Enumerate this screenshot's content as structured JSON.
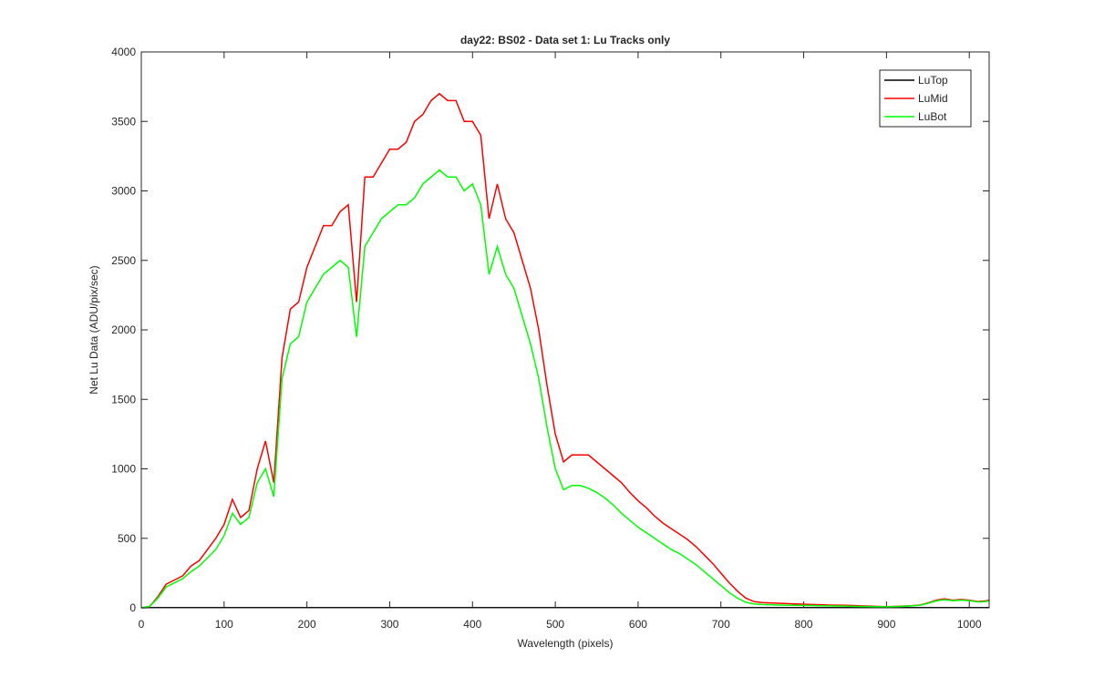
{
  "chart_data": {
    "type": "line",
    "title": "day22: BS02 - Data set 1: Lu Tracks only",
    "xlabel": "Wavelength (pixels)",
    "ylabel": "Net Lu Data (ADU/pix/sec)",
    "x": [
      0,
      10,
      20,
      30,
      40,
      50,
      60,
      70,
      80,
      90,
      100,
      110,
      120,
      130,
      140,
      150,
      160,
      170,
      180,
      190,
      200,
      210,
      220,
      230,
      240,
      250,
      260,
      270,
      280,
      290,
      300,
      310,
      320,
      330,
      340,
      350,
      360,
      370,
      380,
      390,
      400,
      410,
      420,
      430,
      440,
      450,
      460,
      470,
      480,
      490,
      500,
      510,
      520,
      530,
      540,
      550,
      560,
      570,
      580,
      590,
      600,
      610,
      620,
      630,
      640,
      650,
      660,
      670,
      680,
      690,
      700,
      710,
      720,
      730,
      740,
      750,
      760,
      770,
      780,
      790,
      800,
      810,
      820,
      830,
      840,
      850,
      860,
      870,
      880,
      890,
      900,
      910,
      920,
      930,
      940,
      950,
      960,
      970,
      980,
      990,
      1000,
      1010,
      1020,
      1024
    ],
    "series": [
      {
        "name": "LuTop",
        "color": "#000000",
        "values": [
          0,
          2,
          2,
          2,
          2,
          2,
          2,
          2,
          2,
          2,
          2,
          2,
          2,
          2,
          2,
          2,
          2,
          2,
          2,
          2,
          2,
          2,
          2,
          2,
          2,
          2,
          2,
          2,
          2,
          2,
          2,
          2,
          2,
          2,
          2,
          2,
          2,
          2,
          2,
          2,
          2,
          2,
          2,
          2,
          2,
          2,
          2,
          2,
          2,
          2,
          2,
          2,
          2,
          2,
          2,
          2,
          2,
          2,
          2,
          2,
          2,
          2,
          2,
          2,
          2,
          2,
          2,
          2,
          2,
          2,
          2,
          2,
          2,
          2,
          2,
          2,
          2,
          2,
          2,
          2,
          2,
          2,
          2,
          2,
          2,
          2,
          2,
          2,
          2,
          2,
          2,
          2,
          2,
          2,
          2,
          2,
          2,
          2,
          2,
          2,
          2,
          2,
          2,
          2
        ]
      },
      {
        "name": "LuMid",
        "color": "#ff0000",
        "values": [
          0,
          10,
          80,
          170,
          200,
          230,
          300,
          340,
          420,
          500,
          600,
          780,
          650,
          700,
          1000,
          1200,
          900,
          1800,
          2150,
          2200,
          2450,
          2600,
          2750,
          2750,
          2850,
          2900,
          2200,
          3100,
          3100,
          3200,
          3300,
          3300,
          3350,
          3500,
          3550,
          3650,
          3700,
          3650,
          3650,
          3500,
          3500,
          3400,
          2800,
          3050,
          2800,
          2700,
          2500,
          2300,
          2000,
          1600,
          1250,
          1050,
          1100,
          1100,
          1100,
          1050,
          1000,
          950,
          900,
          830,
          770,
          720,
          660,
          610,
          570,
          530,
          490,
          440,
          380,
          320,
          250,
          180,
          120,
          70,
          45,
          38,
          35,
          33,
          30,
          28,
          26,
          24,
          22,
          20,
          19,
          18,
          16,
          14,
          12,
          10,
          8,
          10,
          12,
          15,
          20,
          35,
          55,
          65,
          55,
          60,
          55,
          45,
          50,
          55
        ]
      },
      {
        "name": "LuBot",
        "color": "#00ff00",
        "values": [
          0,
          10,
          70,
          150,
          180,
          210,
          260,
          300,
          360,
          420,
          520,
          680,
          600,
          650,
          900,
          1000,
          800,
          1650,
          1900,
          1950,
          2200,
          2300,
          2400,
          2450,
          2500,
          2450,
          1950,
          2600,
          2700,
          2800,
          2850,
          2900,
          2900,
          2950,
          3050,
          3100,
          3150,
          3100,
          3100,
          3000,
          3050,
          2900,
          2400,
          2600,
          2400,
          2300,
          2100,
          1900,
          1650,
          1300,
          1000,
          850,
          880,
          880,
          860,
          830,
          790,
          740,
          680,
          630,
          580,
          540,
          500,
          460,
          420,
          390,
          350,
          310,
          260,
          210,
          160,
          110,
          70,
          40,
          28,
          24,
          22,
          20,
          19,
          18,
          17,
          16,
          15,
          14,
          13,
          12,
          11,
          10,
          9,
          8,
          7,
          9,
          11,
          14,
          18,
          32,
          50,
          58,
          52,
          55,
          52,
          42,
          45,
          50
        ]
      }
    ],
    "xlim": [
      0,
      1024
    ],
    "xticks": [
      0,
      100,
      200,
      300,
      400,
      500,
      600,
      700,
      800,
      900,
      1000
    ],
    "ylim": [
      0,
      4000
    ],
    "yticks": [
      0,
      500,
      1000,
      1500,
      2000,
      2500,
      3000,
      3500,
      4000
    ],
    "legend": "northeast"
  }
}
